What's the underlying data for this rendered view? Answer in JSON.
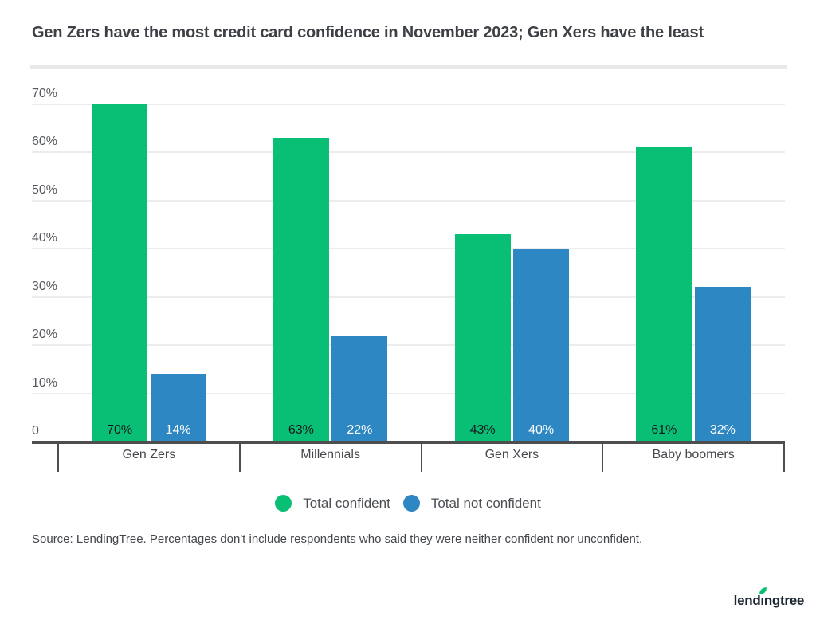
{
  "title": "Gen Zers have the most credit card confidence in November 2023; Gen Xers have the least",
  "source_note": "Source: LendingTree. Percentages don't include respondents who said they were neither confident nor unconfident.",
  "logo": {
    "brand": "lendingtree",
    "leaf_color": "#0bbf75",
    "text_color": "#1b2733"
  },
  "colors": {
    "confident_green": "#08bf75",
    "not_confident_blue": "#2d87c3",
    "axis": "#4e4e4e",
    "gridline": "#ececec",
    "title_text": "#3d4045"
  },
  "legend": {
    "items": [
      {
        "label": "Total confident",
        "color": "#08bf75"
      },
      {
        "label": "Total not confident",
        "color": "#2d87c3"
      }
    ]
  },
  "chart_data": {
    "type": "bar",
    "title": "Gen Zers have the most credit card confidence in November 2023; Gen Xers have the least",
    "categories": [
      "Gen Zers",
      "Millennials",
      "Gen Xers",
      "Baby boomers"
    ],
    "series": [
      {
        "name": "Total confident",
        "color": "#08bf75",
        "values": [
          70,
          63,
          43,
          61
        ],
        "value_labels": [
          "70%",
          "63%",
          "43%",
          "61%"
        ],
        "label_color": "#14181c"
      },
      {
        "name": "Total not confident",
        "color": "#2d87c3",
        "values": [
          14,
          22,
          40,
          32
        ],
        "value_labels": [
          "14%",
          "22%",
          "40%",
          "32%"
        ],
        "label_color": "#ffffff"
      }
    ],
    "xlabel": "",
    "ylabel": "",
    "ylim": [
      0,
      70
    ],
    "ytick_values": [
      0,
      10,
      20,
      30,
      40,
      50,
      60,
      70
    ],
    "ytick_labels": [
      "0",
      "10%",
      "20%",
      "30%",
      "40%",
      "50%",
      "60%",
      "70%"
    ],
    "grid": true,
    "legend_position": "bottom"
  }
}
